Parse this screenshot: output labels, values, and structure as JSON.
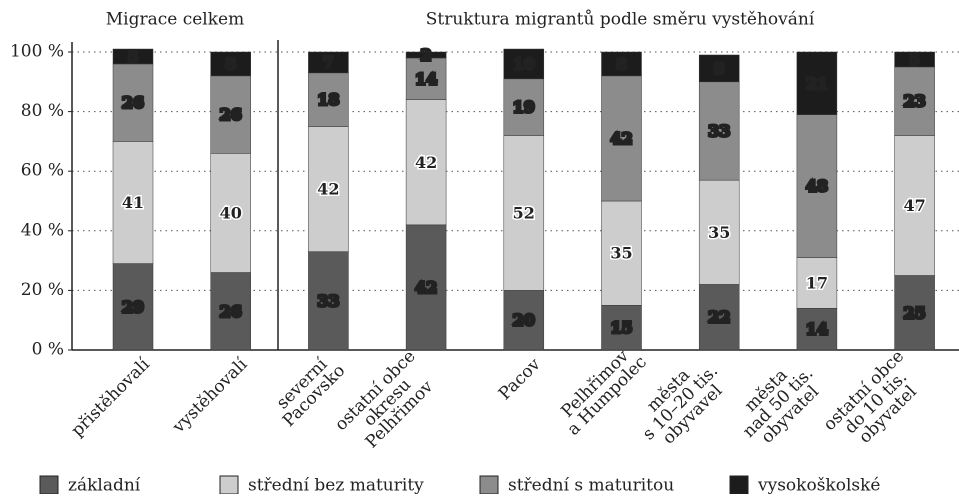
{
  "chart_data": {
    "type": "stacked_bar",
    "group_titles": [
      "Migrace celkem",
      "Struktura migrantů podle směru vystěhování"
    ],
    "categories": [
      [
        "přistěhovalí"
      ],
      [
        "vystěhovalí"
      ],
      [
        "severní",
        "Pacovsko"
      ],
      [
        "ostatní obce",
        "okresu",
        "Pelhřimov"
      ],
      [
        "Pacov"
      ],
      [
        "Pelhřimov",
        "a Humpolec"
      ],
      [
        "města",
        "s 10–20 tis.",
        "obyvavel"
      ],
      [
        "města",
        "nad 50 tis.",
        "obyvatel"
      ],
      [
        "ostatní obce",
        "do 10 tis.",
        "obyvatel"
      ]
    ],
    "series": [
      {
        "name": "základní",
        "color": "#5a5a5a",
        "values": [
          29,
          26,
          33,
          42,
          20,
          15,
          22,
          14,
          25
        ]
      },
      {
        "name": "střední bez maturity",
        "color": "#cdcdcd",
        "values": [
          41,
          40,
          42,
          42,
          52,
          35,
          35,
          17,
          47
        ]
      },
      {
        "name": "střední s maturitou",
        "color": "#8c8c8c",
        "values": [
          26,
          26,
          18,
          14,
          19,
          42,
          33,
          48,
          23
        ]
      },
      {
        "name": "vysokoškolské",
        "color": "#1c1c1c",
        "values": [
          5,
          8,
          7,
          2,
          10,
          8,
          9,
          21,
          5
        ]
      }
    ],
    "ylim": [
      0,
      100
    ],
    "yticks": [
      {
        "value": 0,
        "label": "0 %"
      },
      {
        "value": 20,
        "label": "20 %"
      },
      {
        "value": 40,
        "label": "40 %"
      },
      {
        "value": 60,
        "label": "60 %"
      },
      {
        "value": 80,
        "label": "80 %"
      },
      {
        "value": 100,
        "label": "100 %"
      }
    ],
    "grid": true
  }
}
